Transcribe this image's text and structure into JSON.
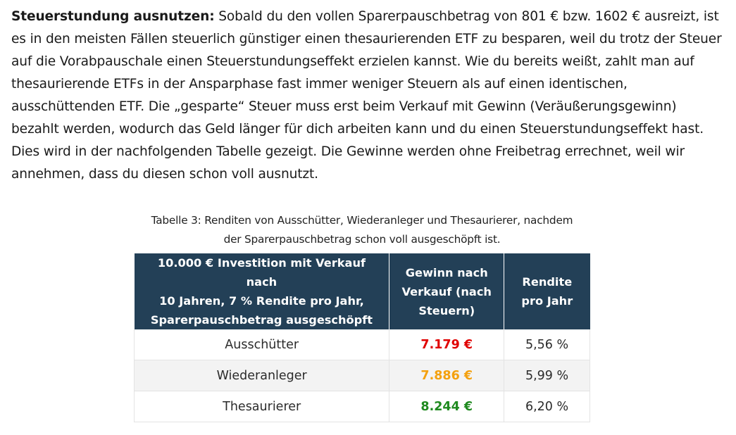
{
  "paragraph": {
    "bold_lead": "Steuerstundung ausnutzen:",
    "text": " Sobald du den vollen Sparerpauschbetrag von 801 € bzw. 1602 € ausreizt, ist es in den meisten Fällen steuerlich günstiger einen thesaurierenden ETF zu besparen, weil du trotz der Steuer auf die Vorabpauschale einen Steuerstundungseffekt erzielen kannst. Wie du bereits weißt, zahlt man auf thesaurierende ETFs in der Ansparphase fast immer weniger Steuern als auf einen identischen, ausschüttenden ETF. Die „gesparte“ Steuer muss erst beim Verkauf mit Gewinn (Veräußerungsgewinn) bezahlt werden, wodurch das Geld länger für dich arbeiten kann und du einen Steuerstundungseffekt hast. Dies wird in der nachfolgenden Tabelle gezeigt. Die Gewinne werden ohne Freibetrag errechnet, weil wir annehmen, dass du diesen schon voll ausnutzt."
  },
  "table": {
    "caption_line1": "Tabelle 3: Renditen von Ausschütter, Wiederanleger und Thesaurierer, nachdem",
    "caption_line2": "der Sparerpauschbetrag schon voll ausgeschöpft ist.",
    "headers": [
      {
        "line1": "10.000 € Investition mit Verkauf nach",
        "line2": "10 Jahren, 7 % Rendite pro Jahr,",
        "line3": "Sparerpauschbetrag ausgeschöpft"
      },
      {
        "line1": "Gewinn nach",
        "line2": "Verkauf (nach",
        "line3": "Steuern)"
      },
      {
        "line1": "Rendite",
        "line2": "pro Jahr"
      }
    ],
    "header_bg_color": "#234057",
    "rows": [
      {
        "label": "Ausschütter",
        "gain": "7.179 €",
        "gain_color": "#e00000",
        "rendite": "5,56 %"
      },
      {
        "label": "Wiederanleger",
        "gain": "7.886 €",
        "gain_color": "#f4a10f",
        "rendite": "5,99 %"
      },
      {
        "label": "Thesaurierer",
        "gain": "8.244 €",
        "gain_color": "#1f8a1f",
        "rendite": "6,20 %"
      }
    ]
  }
}
